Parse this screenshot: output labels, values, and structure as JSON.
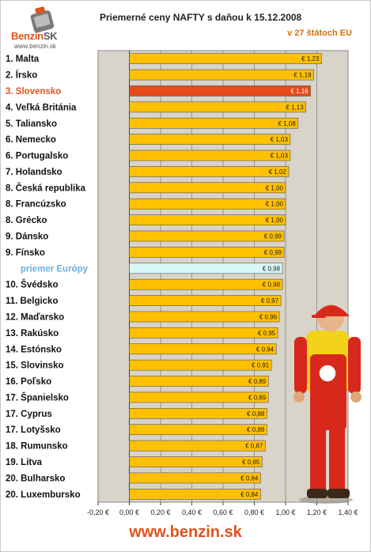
{
  "header": {
    "logo_brand_a": "Benzin",
    "logo_brand_b": "SK",
    "logo_url": "www.benzin.sk",
    "title": "Priemerné ceny NAFTY s daňou k 15.12.2008",
    "subtitle": "v 27 štátoch EU"
  },
  "footer": {
    "url": "www.benzin.sk"
  },
  "colors": {
    "bar": "#ffc000",
    "bar_highlight": "#e84a1a",
    "bar_average": "#d8f6f6",
    "plot_bg": "#d9d4c9",
    "label_highlight": "#e0541c",
    "label_average": "#6ab0e0"
  },
  "chart_data": {
    "type": "bar",
    "orientation": "horizontal",
    "title": "Priemerné ceny NAFTY s daňou k 15.12.2008",
    "subtitle": "v 27 štátoch EU",
    "xlim": [
      -0.2,
      1.4
    ],
    "xticks": [
      -0.2,
      0.0,
      0.2,
      0.4,
      0.6,
      0.8,
      1.0,
      1.2,
      1.4
    ],
    "xtick_labels": [
      "-0,20 €",
      "0,00 €",
      "0,20 €",
      "0,40 €",
      "0,60 €",
      "0,80 €",
      "1,00 €",
      "1,20 €",
      "1,40 €"
    ],
    "grid": "vertical",
    "categories": [
      "1. Malta",
      "2. Írsko",
      "3. Slovensko",
      "4. Veľká Británia",
      "5. Taliansko",
      "6. Nemecko",
      "6. Portugalsko",
      "7. Holandsko",
      "8. Česká republika",
      "8. Francúzsko",
      "8. Grécko",
      "9. Dánsko",
      "9. Fínsko",
      "priemer Európy",
      "10. Švédsko",
      "11. Belgicko",
      "12. Maďarsko",
      "13. Rakúsko",
      "14. Estónsko",
      "15. Slovinsko",
      "16. Poľsko",
      "17. Španielsko",
      "17. Cyprus",
      "17. Lotyšsko",
      "18. Rumunsko",
      "19. Litva",
      "20. Bulharsko",
      "20. Luxembursko"
    ],
    "values": [
      1.23,
      1.18,
      1.16,
      1.13,
      1.08,
      1.03,
      1.03,
      1.02,
      1.0,
      1.0,
      1.0,
      0.99,
      0.99,
      0.98,
      0.98,
      0.97,
      0.96,
      0.95,
      0.94,
      0.91,
      0.89,
      0.89,
      0.88,
      0.88,
      0.87,
      0.85,
      0.84,
      0.84
    ],
    "value_labels": [
      "€ 1,23",
      "€ 1,18",
      "€ 1,16",
      "€ 1,13",
      "€ 1,08",
      "€ 1,03",
      "€ 1,03",
      "€ 1,02",
      "€ 1,00",
      "€ 1,00",
      "€ 1,00",
      "€ 0,99",
      "€ 0,99",
      "€ 0,98",
      "€ 0,98",
      "€ 0,97",
      "€ 0,96",
      "€ 0,95",
      "€ 0,94",
      "€ 0,91",
      "€ 0,89",
      "€ 0,89",
      "€ 0,88",
      "€ 0,88",
      "€ 0,87",
      "€ 0,85",
      "€ 0,84",
      "€ 0,84"
    ],
    "highlight": "3. Slovensko",
    "average": "priemer Európy"
  }
}
